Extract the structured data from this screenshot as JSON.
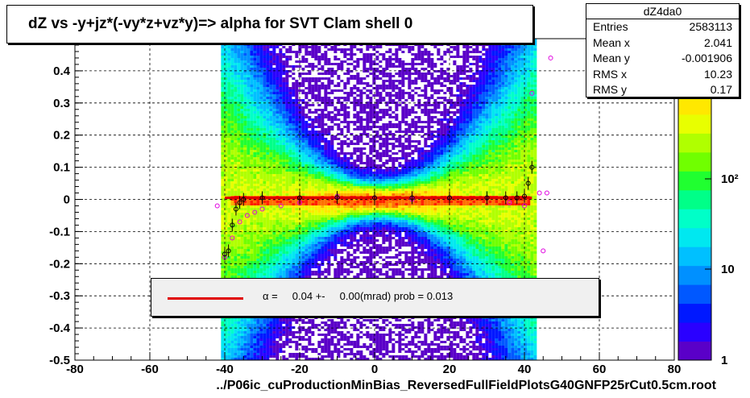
{
  "title": "dZ vs -y+jz*(-vy*z+vz*y)=> alpha for SVT Clam shell 0",
  "stats": {
    "name": "dZ4da0",
    "rows": [
      {
        "label": "Entries",
        "value": "2583113"
      },
      {
        "label": "Mean x",
        "value": "2.041"
      },
      {
        "label": "Mean y",
        "value": "-0.001906"
      },
      {
        "label": "RMS x",
        "value": "10.23"
      },
      {
        "label": "RMS y",
        "value": "0.17"
      }
    ]
  },
  "legend": {
    "text": "α =     0.04 +-     0.00(mrad) prob = 0.013",
    "line_color": "#e00000"
  },
  "x_axis_title": "../P06ic_cuProductionMinBias_ReversedFullFieldPlotsG40GNFP25rCut0.5cm.root",
  "chart_data": {
    "type": "heatmap",
    "x_ticks": [
      "-80",
      "-60",
      "-40",
      "-20",
      "0",
      "20",
      "40",
      "60",
      "80"
    ],
    "y_ticks": [
      "-0.5",
      "-0.4",
      "-0.3",
      "-0.2",
      "-0.1",
      "0",
      "0.1",
      "0.2",
      "0.3",
      "0.4"
    ],
    "xlim": [
      -80,
      80
    ],
    "ylim": [
      -0.5,
      0.5
    ],
    "grid": true,
    "z_scale": "log",
    "z_ticks": [
      "1",
      "10",
      "10²"
    ],
    "fit_line": {
      "color": "#e00000",
      "x": [
        -40,
        42
      ],
      "y": [
        0.005,
        0.005
      ]
    },
    "profile_black": {
      "x": [
        -40,
        -39,
        -38,
        -37,
        -36,
        -35,
        -30,
        -20,
        -10,
        0,
        10,
        20,
        30,
        35,
        38,
        40,
        41,
        42
      ],
      "y": [
        -0.17,
        -0.16,
        -0.08,
        -0.03,
        -0.01,
        0.0,
        0.005,
        0.005,
        0.006,
        0.005,
        0.005,
        0.005,
        0.005,
        0.005,
        0.005,
        0.01,
        0.05,
        0.1
      ]
    },
    "profile_magenta": {
      "x": [
        -42,
        -40,
        -38,
        -36,
        -34,
        -32,
        -30,
        -25,
        -20,
        -10,
        0,
        10,
        20,
        30,
        36,
        40,
        42,
        44,
        45,
        46,
        47
      ],
      "y": [
        -0.02,
        -0.18,
        -0.12,
        -0.07,
        -0.05,
        -0.04,
        -0.03,
        -0.02,
        -0.01,
        0.01,
        0.005,
        0.0,
        0.005,
        0.005,
        -0.01,
        -0.02,
        0.33,
        0.02,
        -0.16,
        0.02,
        0.44
      ]
    },
    "profile_magenta_points_color": "#e000e0"
  },
  "colors": {
    "frame": "#000000",
    "fit": "#e00000",
    "magenta": "#e000e0"
  }
}
